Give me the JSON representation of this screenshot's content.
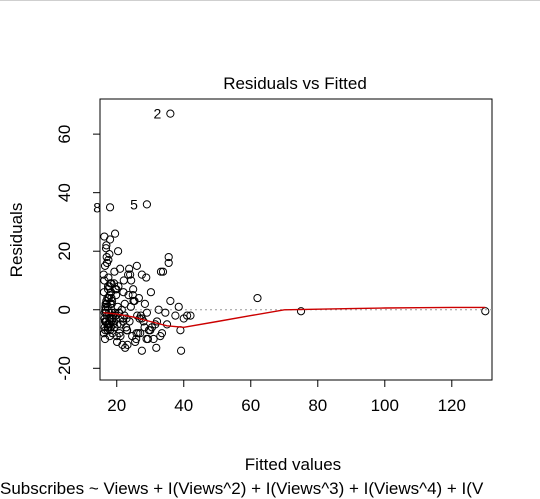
{
  "chart_data": {
    "type": "scatter",
    "title": "Residuals vs Fitted",
    "xlabel": "Fitted values",
    "ylabel": "Residuals",
    "subtitle": "Subscribes ~ Views + I(Views^2) + I(Views^3) + I(Views^4) + I(V",
    "xlim": [
      15,
      132
    ],
    "ylim": [
      -24,
      72
    ],
    "x_ticks": [
      20,
      40,
      60,
      80,
      100,
      120
    ],
    "y_ticks": [
      -20,
      0,
      20,
      40,
      60
    ],
    "grid": false,
    "reference_line": 0,
    "colors": {
      "points": "#000000",
      "smooth": "#cc0000",
      "reference": "#999999"
    },
    "point_labels": [
      {
        "text": "2",
        "x": 36,
        "y": 67
      },
      {
        "text": "8",
        "x": 18,
        "y": 35
      },
      {
        "text": "5",
        "x": 29,
        "y": 36
      }
    ],
    "smooth_line": {
      "x": [
        16,
        20,
        25,
        30,
        35,
        40,
        50,
        60,
        70,
        80,
        90,
        100,
        110,
        120,
        130
      ],
      "y": [
        -1,
        -1.5,
        -2.5,
        -4,
        -5.5,
        -6,
        -4,
        -2,
        0,
        0.2,
        0.4,
        0.6,
        0.7,
        0.8,
        0.8
      ]
    },
    "points": {
      "x": [
        36,
        18,
        29,
        16.5,
        17,
        16.2,
        17.5,
        16.8,
        17.2,
        16.4,
        17.8,
        16.6,
        17.1,
        16.3,
        17.6,
        16.9,
        17.3,
        16.7,
        17.9,
        16.1,
        18.2,
        17.4,
        16.5,
        17.7,
        16.2,
        18.5,
        17,
        16.8,
        18.1,
        17.3,
        16.4,
        17.6,
        18.8,
        16.9,
        17.2,
        18.3,
        16.6,
        17.9,
        18.6,
        16.3,
        19.1,
        17.5,
        18,
        16.7,
        19.4,
        17.1,
        18.7,
        16.5,
        19.8,
        17.4,
        18.2,
        20.3,
        17.8,
        19,
        20.8,
        18.4,
        21.2,
        19.6,
        21.8,
        20.1,
        22.4,
        19.3,
        23,
        21.5,
        23.8,
        22,
        24.6,
        20.7,
        25.3,
        22.8,
        26.1,
        23.5,
        27,
        24.2,
        28,
        25.8,
        29,
        26.6,
        30,
        27.5,
        31.5,
        28.4,
        33,
        30.5,
        34.5,
        32,
        36,
        33.5,
        37.5,
        35,
        38.5,
        40,
        39,
        42,
        18,
        19.5,
        21,
        17.5,
        24,
        22.5,
        27.5,
        26,
        16.8,
        19.2,
        23.2,
        20.5,
        25.5,
        28.8,
        31,
        33.8,
        35.5,
        21.7,
        24.8,
        17.9,
        18.7,
        22.1,
        26.8,
        29.6,
        32.5,
        20,
        23.7,
        17.3,
        19.9,
        16.9,
        18.4,
        21.1,
        25,
        27.2,
        30.2,
        18.9,
        22.9,
        16.6,
        20.6,
        24.3,
        28.3,
        17.6,
        19.7,
        23.4,
        26.4,
        21.9,
        29.3,
        18.1,
        20.4,
        16.4,
        24.9,
        62,
        75,
        130,
        27.5,
        35.5,
        39.2,
        33.2,
        41,
        31.8,
        19.3,
        20.2,
        16.7,
        17.8,
        18.5,
        23.1,
        25.9,
        28.9,
        22.3,
        19.6
      ],
      "y": [
        67,
        35,
        36,
        -4,
        2,
        6,
        -6,
        -1,
        4,
        -3,
        8,
        1,
        -2,
        10,
        -5,
        3,
        -7,
        0,
        5,
        12,
        -3,
        7,
        15,
        -1,
        -8,
        2,
        18,
        -4,
        9,
        1,
        -6,
        4,
        -2,
        22,
        -5,
        6,
        0,
        -9,
        3,
        25,
        -4,
        11,
        -7,
        2,
        -1,
        16,
        -3,
        -10,
        5,
        8,
        -6,
        1,
        19,
        -2,
        -8,
        4,
        -5,
        7,
        -3,
        -11,
        2,
        13,
        -7,
        0,
        -4,
        6,
        -9,
        -1,
        3,
        -6,
        -2,
        5,
        -8,
        1,
        -4,
        -10,
        -1,
        4,
        -7,
        -3,
        -5,
        2,
        -9,
        -6,
        -1,
        -4,
        3,
        -8,
        -2,
        -5,
        1,
        -3,
        -7,
        -2,
        24,
        26,
        14,
        17,
        12,
        -13,
        -14,
        15,
        21,
        9,
        -12,
        8,
        -11,
        11,
        -10,
        13,
        16,
        -12,
        5,
        -5,
        -8,
        10,
        -3,
        -7,
        0,
        -9,
        14,
        -6,
        7,
        -4,
        9,
        -9,
        3,
        -2,
        6,
        -5,
        -3,
        -7,
        -1,
        10,
        -6,
        4,
        -2,
        12,
        -8,
        -4,
        -10,
        2,
        20,
        -1,
        7,
        4,
        -0.5,
        -0.5,
        12,
        18,
        -14,
        13,
        -2,
        -13,
        -6,
        -5,
        -4,
        -3,
        -1,
        -7,
        -8,
        -10,
        -2,
        -2
      ]
    }
  }
}
